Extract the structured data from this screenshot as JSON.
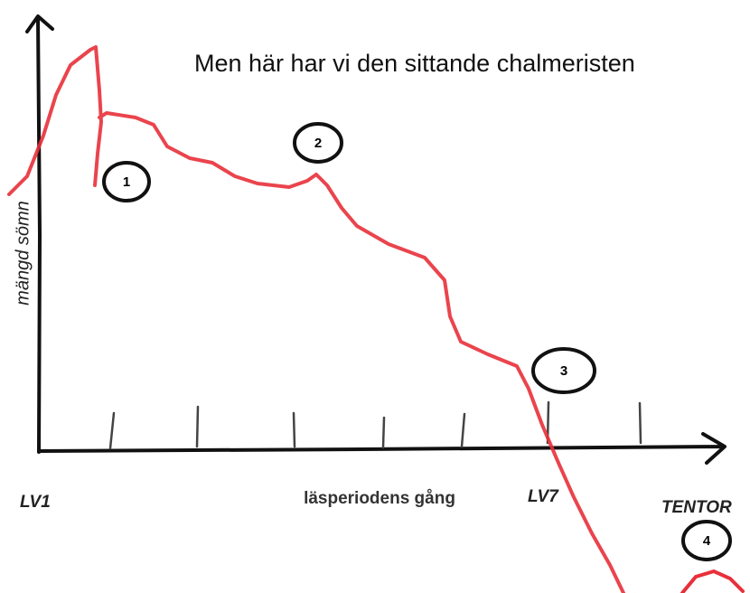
{
  "title": "Men här har vi den sittande chalmeristen",
  "y_axis_label": "mängd sömn",
  "x_axis_label": "läsperiodens gång",
  "x_labels": [
    "LV1",
    "LV7",
    "TENTOR"
  ],
  "markers": [
    "1",
    "2",
    "3",
    "4"
  ]
}
